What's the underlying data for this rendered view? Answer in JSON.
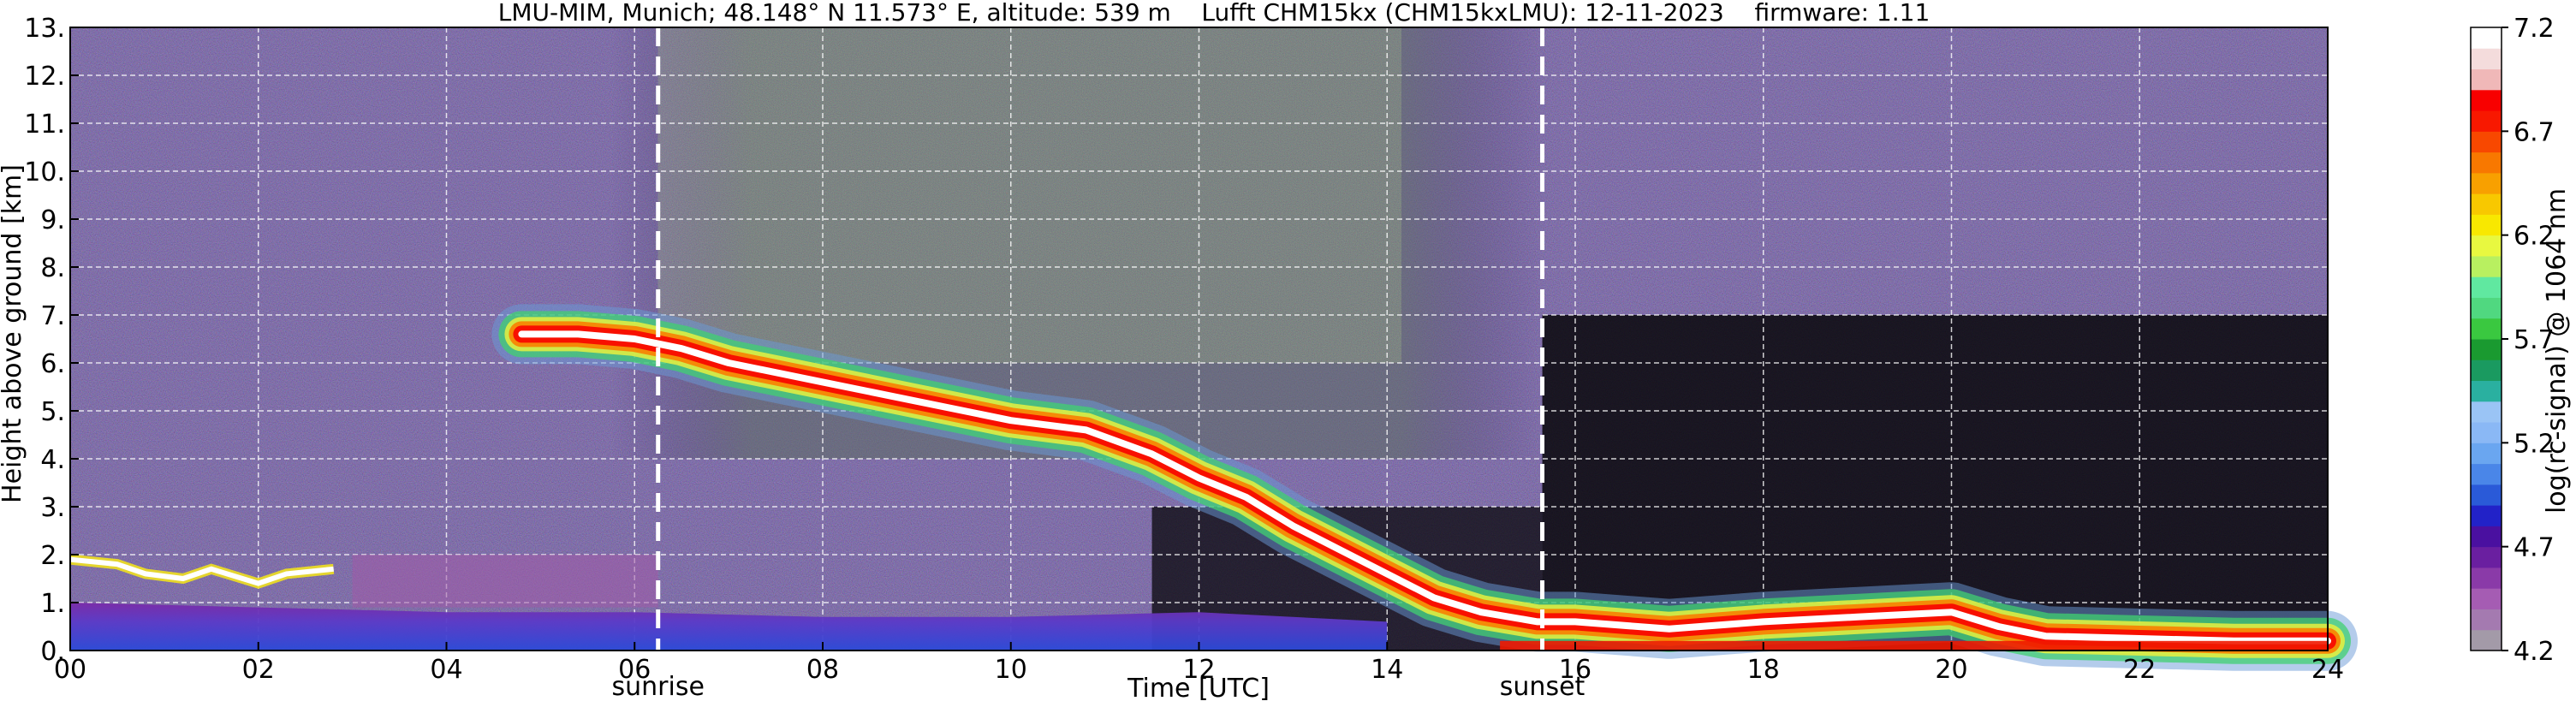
{
  "chart_data": {
    "type": "heatmap",
    "title": "LMU-MIM, Munich; 48.148° N 11.573° E, altitude: 539 m    Lufft CHM15kx (CHM15kxLMU): 12-11-2023    firmware: 1.11",
    "xlabel": "Time [UTC]",
    "ylabel": "Height above ground [km]",
    "xlim": [
      0,
      24
    ],
    "ylim": [
      0,
      13
    ],
    "x_ticks": [
      "00",
      "02",
      "04",
      "06",
      "08",
      "10",
      "12",
      "14",
      "16",
      "18",
      "20",
      "22",
      "24"
    ],
    "y_ticks": [
      "0.",
      "1.",
      "2.",
      "3.",
      "4.",
      "5.",
      "6.",
      "7.",
      "8.",
      "9.",
      "10.",
      "11.",
      "12.",
      "13."
    ],
    "grid": true,
    "annotations": [
      {
        "label": "sunrise",
        "x": 6.25
      },
      {
        "label": "sunset",
        "x": 15.65
      }
    ],
    "colorbar": {
      "label": "log(rc-signal) @ 1064 nm",
      "range": [
        4.2,
        7.2
      ],
      "ticks": [
        "4.2",
        "4.7",
        "5.2",
        "5.7",
        "6.2",
        "6.7",
        "7.2"
      ],
      "colors": [
        "#a39aa8",
        "#a47ab0",
        "#a55cb3",
        "#8a3aa8",
        "#6a1fa0",
        "#4a10a0",
        "#2222c8",
        "#2a5ad8",
        "#4a86e8",
        "#6aa6f0",
        "#8ab8f5",
        "#9ac4f5",
        "#2ab0a0",
        "#1a9a60",
        "#1a9a30",
        "#3ac840",
        "#50d880",
        "#60e8a0",
        "#b8f060",
        "#e8f840",
        "#f8e800",
        "#f8c800",
        "#f8a000",
        "#f87800",
        "#f84800",
        "#f81800",
        "#f80000",
        "#f0b8b8",
        "#f4dcdc",
        "#ffffff"
      ]
    },
    "features": {
      "boundary_layer_top": [
        [
          0,
          1.9
        ],
        [
          0.5,
          1.8
        ],
        [
          0.8,
          1.6
        ],
        [
          1.2,
          1.5
        ],
        [
          1.5,
          1.7
        ],
        [
          2,
          1.4
        ],
        [
          2.3,
          1.6
        ],
        [
          2.8,
          1.7
        ]
      ],
      "high_cloud": [
        [
          4.8,
          6.6
        ],
        [
          5.4,
          6.6
        ],
        [
          6,
          6.5
        ],
        [
          6.5,
          6.3
        ],
        [
          7,
          6
        ],
        [
          8,
          5.6
        ],
        [
          9,
          5.2
        ],
        [
          10,
          4.8
        ],
        [
          10.8,
          4.6
        ],
        [
          11.5,
          4.1
        ],
        [
          12,
          3.6
        ],
        [
          12.5,
          3.2
        ],
        [
          13,
          2.6
        ],
        [
          13.5,
          2.1
        ],
        [
          14,
          1.6
        ],
        [
          14.5,
          1.1
        ],
        [
          15,
          0.8
        ],
        [
          15.6,
          0.6
        ],
        [
          16,
          0.6
        ],
        [
          17,
          0.45
        ],
        [
          18,
          0.6
        ],
        [
          19,
          0.7
        ],
        [
          20,
          0.8
        ],
        [
          20.5,
          0.5
        ],
        [
          21,
          0.3
        ],
        [
          22,
          0.25
        ],
        [
          23,
          0.2
        ],
        [
          24,
          0.2
        ]
      ],
      "residual_layer_top": [
        [
          0,
          1.0
        ],
        [
          2,
          0.9
        ],
        [
          4,
          0.8
        ],
        [
          6,
          0.8
        ],
        [
          8,
          0.7
        ],
        [
          10,
          0.7
        ],
        [
          12,
          0.8
        ],
        [
          14,
          0.6
        ]
      ]
    }
  }
}
